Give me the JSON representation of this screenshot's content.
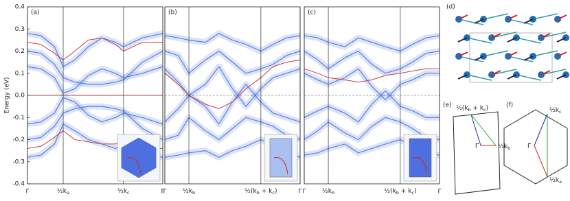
{
  "chart_data": [
    {
      "type": "line",
      "label": "(a)",
      "ylabel": "Energy (eV)",
      "xlim": [
        0,
        1
      ],
      "ylim": [
        -0.4,
        0.4
      ],
      "yticks": [
        -0.4,
        -0.3,
        -0.2,
        -0.1,
        {
          "value": 0,
          "label": "0.0"
        },
        0.1,
        0.2,
        0.3,
        0.4
      ],
      "xticks": [
        {
          "value": 0,
          "label": "Γ"
        },
        {
          "value": 0.264,
          "label_parts": [
            "½k",
            "a"
          ]
        },
        {
          "value": 0.71,
          "label_parts": [
            "½k",
            "c"
          ]
        },
        {
          "value": 1,
          "label": "Γ"
        }
      ],
      "x": [
        0,
        0.1,
        0.2,
        0.264,
        0.35,
        0.45,
        0.55,
        0.65,
        0.71,
        0.85,
        1
      ],
      "series": [
        {
          "color": "#5a7fe0",
          "values": [
            0.28,
            0.27,
            0.22,
            0.13,
            0.16,
            0.22,
            0.26,
            0.24,
            0.22,
            0.26,
            0.28
          ]
        },
        {
          "color": "#5a7fe0",
          "values": [
            0.2,
            0.19,
            0.14,
            0.08,
            0.06,
            0.05,
            0.05,
            0.06,
            0.07,
            0.15,
            0.2
          ]
        },
        {
          "color": "#5a7fe0",
          "values": [
            0.13,
            0.12,
            0.08,
            0.01,
            0.03,
            0.09,
            0.12,
            0.1,
            0.08,
            0.1,
            0.13
          ]
        },
        {
          "color": "#5a7fe0",
          "values": [
            -0.13,
            -0.12,
            -0.08,
            -0.01,
            -0.03,
            -0.09,
            -0.12,
            -0.1,
            -0.08,
            -0.1,
            -0.13
          ]
        },
        {
          "color": "#5a7fe0",
          "values": [
            -0.2,
            -0.19,
            -0.14,
            -0.08,
            -0.06,
            -0.05,
            -0.05,
            -0.06,
            -0.07,
            -0.15,
            -0.2
          ]
        },
        {
          "color": "#5a7fe0",
          "values": [
            -0.28,
            -0.27,
            -0.22,
            -0.13,
            -0.16,
            -0.2,
            -0.22,
            -0.24,
            -0.22,
            -0.26,
            -0.28
          ]
        },
        {
          "color": "#d23a3a",
          "values": [
            0.0,
            0.0,
            0.0,
            0.0,
            0.0,
            0.0,
            0.0,
            0.0,
            0.0,
            0.0,
            0.0
          ]
        },
        {
          "color": "#d23a3a",
          "values": [
            0.24,
            0.23,
            0.19,
            0.16,
            0.2,
            0.25,
            0.26,
            0.23,
            0.2,
            0.24,
            0.24
          ]
        },
        {
          "color": "#d23a3a",
          "values": [
            -0.24,
            -0.23,
            -0.19,
            -0.16,
            -0.2,
            -0.21,
            -0.22,
            -0.22,
            -0.2,
            -0.24,
            -0.24
          ]
        }
      ]
    },
    {
      "type": "line",
      "label": "(b)",
      "xlim": [
        0,
        1
      ],
      "ylim": [
        -0.4,
        0.4
      ],
      "xticks": [
        {
          "value": 0,
          "label": "Γ"
        },
        {
          "value": 0.178,
          "label_parts": [
            "½k",
            "b"
          ]
        },
        {
          "value": 0.71,
          "label_parts": [
            "½(k",
            "b",
            " + k",
            "c",
            ")"
          ]
        },
        {
          "value": 1,
          "label": "Γ"
        }
      ],
      "x": [
        0,
        0.1,
        0.178,
        0.3,
        0.4,
        0.5,
        0.6,
        0.71,
        0.8,
        0.9,
        1
      ],
      "series": [
        {
          "color": "#5a7fe0",
          "values": [
            0.27,
            0.26,
            0.25,
            0.24,
            0.28,
            0.25,
            0.23,
            0.2,
            0.23,
            0.26,
            0.27
          ]
        },
        {
          "color": "#5a7fe0",
          "values": [
            0.2,
            0.18,
            0.1,
            0.16,
            0.2,
            0.15,
            0.1,
            0.12,
            0.14,
            0.18,
            0.2
          ]
        },
        {
          "color": "#5a7fe0",
          "values": [
            0.12,
            0.06,
            0.0,
            0.05,
            0.13,
            0.03,
            -0.05,
            0.03,
            0.08,
            0.1,
            0.12
          ]
        },
        {
          "color": "#5a7fe0",
          "values": [
            -0.12,
            -0.06,
            0.0,
            -0.05,
            -0.13,
            -0.03,
            0.05,
            -0.03,
            -0.08,
            -0.1,
            -0.12
          ]
        },
        {
          "color": "#5a7fe0",
          "values": [
            -0.2,
            -0.18,
            -0.1,
            -0.16,
            -0.2,
            -0.15,
            -0.1,
            -0.12,
            -0.14,
            -0.18,
            -0.2
          ]
        },
        {
          "color": "#5a7fe0",
          "values": [
            -0.28,
            -0.27,
            -0.26,
            -0.25,
            -0.28,
            -0.25,
            -0.23,
            -0.2,
            -0.23,
            -0.26,
            -0.28
          ]
        },
        {
          "color": "#d23a3a",
          "values": [
            0.1,
            0.05,
            0.0,
            -0.04,
            -0.06,
            -0.03,
            0.03,
            0.08,
            0.13,
            0.15,
            0.16
          ]
        }
      ]
    },
    {
      "type": "line",
      "label": "(c)",
      "xlim": [
        0,
        1
      ],
      "ylim": [
        -0.4,
        0.4
      ],
      "xticks": [
        {
          "value": 0,
          "label": "Γ"
        },
        {
          "value": 0.178,
          "label_parts": [
            "½k",
            "b"
          ]
        },
        {
          "value": 0.71,
          "label_parts": [
            "½(k",
            "b",
            " + k",
            "c",
            ")"
          ]
        },
        {
          "value": 1,
          "label": "Γ"
        }
      ],
      "x": [
        0,
        0.1,
        0.178,
        0.3,
        0.4,
        0.5,
        0.6,
        0.71,
        0.8,
        0.9,
        1
      ],
      "series": [
        {
          "color": "#5a7fe0",
          "values": [
            0.27,
            0.26,
            0.24,
            0.22,
            0.26,
            0.24,
            0.22,
            0.2,
            0.23,
            0.26,
            0.27
          ]
        },
        {
          "color": "#5a7fe0",
          "values": [
            0.2,
            0.16,
            0.12,
            0.17,
            0.2,
            0.14,
            0.1,
            0.12,
            0.15,
            0.19,
            0.2
          ]
        },
        {
          "color": "#5a7fe0",
          "values": [
            0.1,
            0.07,
            0.05,
            0.08,
            0.12,
            0.04,
            -0.02,
            0.05,
            0.07,
            0.1,
            0.1
          ]
        },
        {
          "color": "#5a7fe0",
          "values": [
            -0.1,
            -0.07,
            -0.05,
            -0.08,
            -0.12,
            -0.04,
            0.02,
            -0.05,
            -0.07,
            -0.1,
            -0.1
          ]
        },
        {
          "color": "#5a7fe0",
          "values": [
            -0.2,
            -0.16,
            -0.12,
            -0.17,
            -0.2,
            -0.14,
            -0.1,
            -0.12,
            -0.15,
            -0.19,
            -0.2
          ]
        },
        {
          "color": "#5a7fe0",
          "values": [
            -0.27,
            -0.26,
            -0.24,
            -0.22,
            -0.26,
            -0.24,
            -0.22,
            -0.2,
            -0.23,
            -0.26,
            -0.27
          ]
        },
        {
          "color": "#d23a3a",
          "values": [
            0.12,
            0.1,
            0.08,
            0.07,
            0.06,
            0.07,
            0.09,
            0.1,
            0.11,
            0.12,
            0.12
          ]
        }
      ]
    }
  ],
  "diagrams": {
    "d": {
      "label": "(d)"
    },
    "e": {
      "label": "(e)",
      "top": [
        "½(k",
        "b",
        " + k",
        "c",
        ")"
      ],
      "center": "Γ",
      "right": [
        "½k",
        "b"
      ]
    },
    "f": {
      "label": "(f)",
      "top": [
        "½k",
        "c"
      ],
      "center": "Γ",
      "bottom": [
        "½k",
        "a"
      ]
    }
  }
}
